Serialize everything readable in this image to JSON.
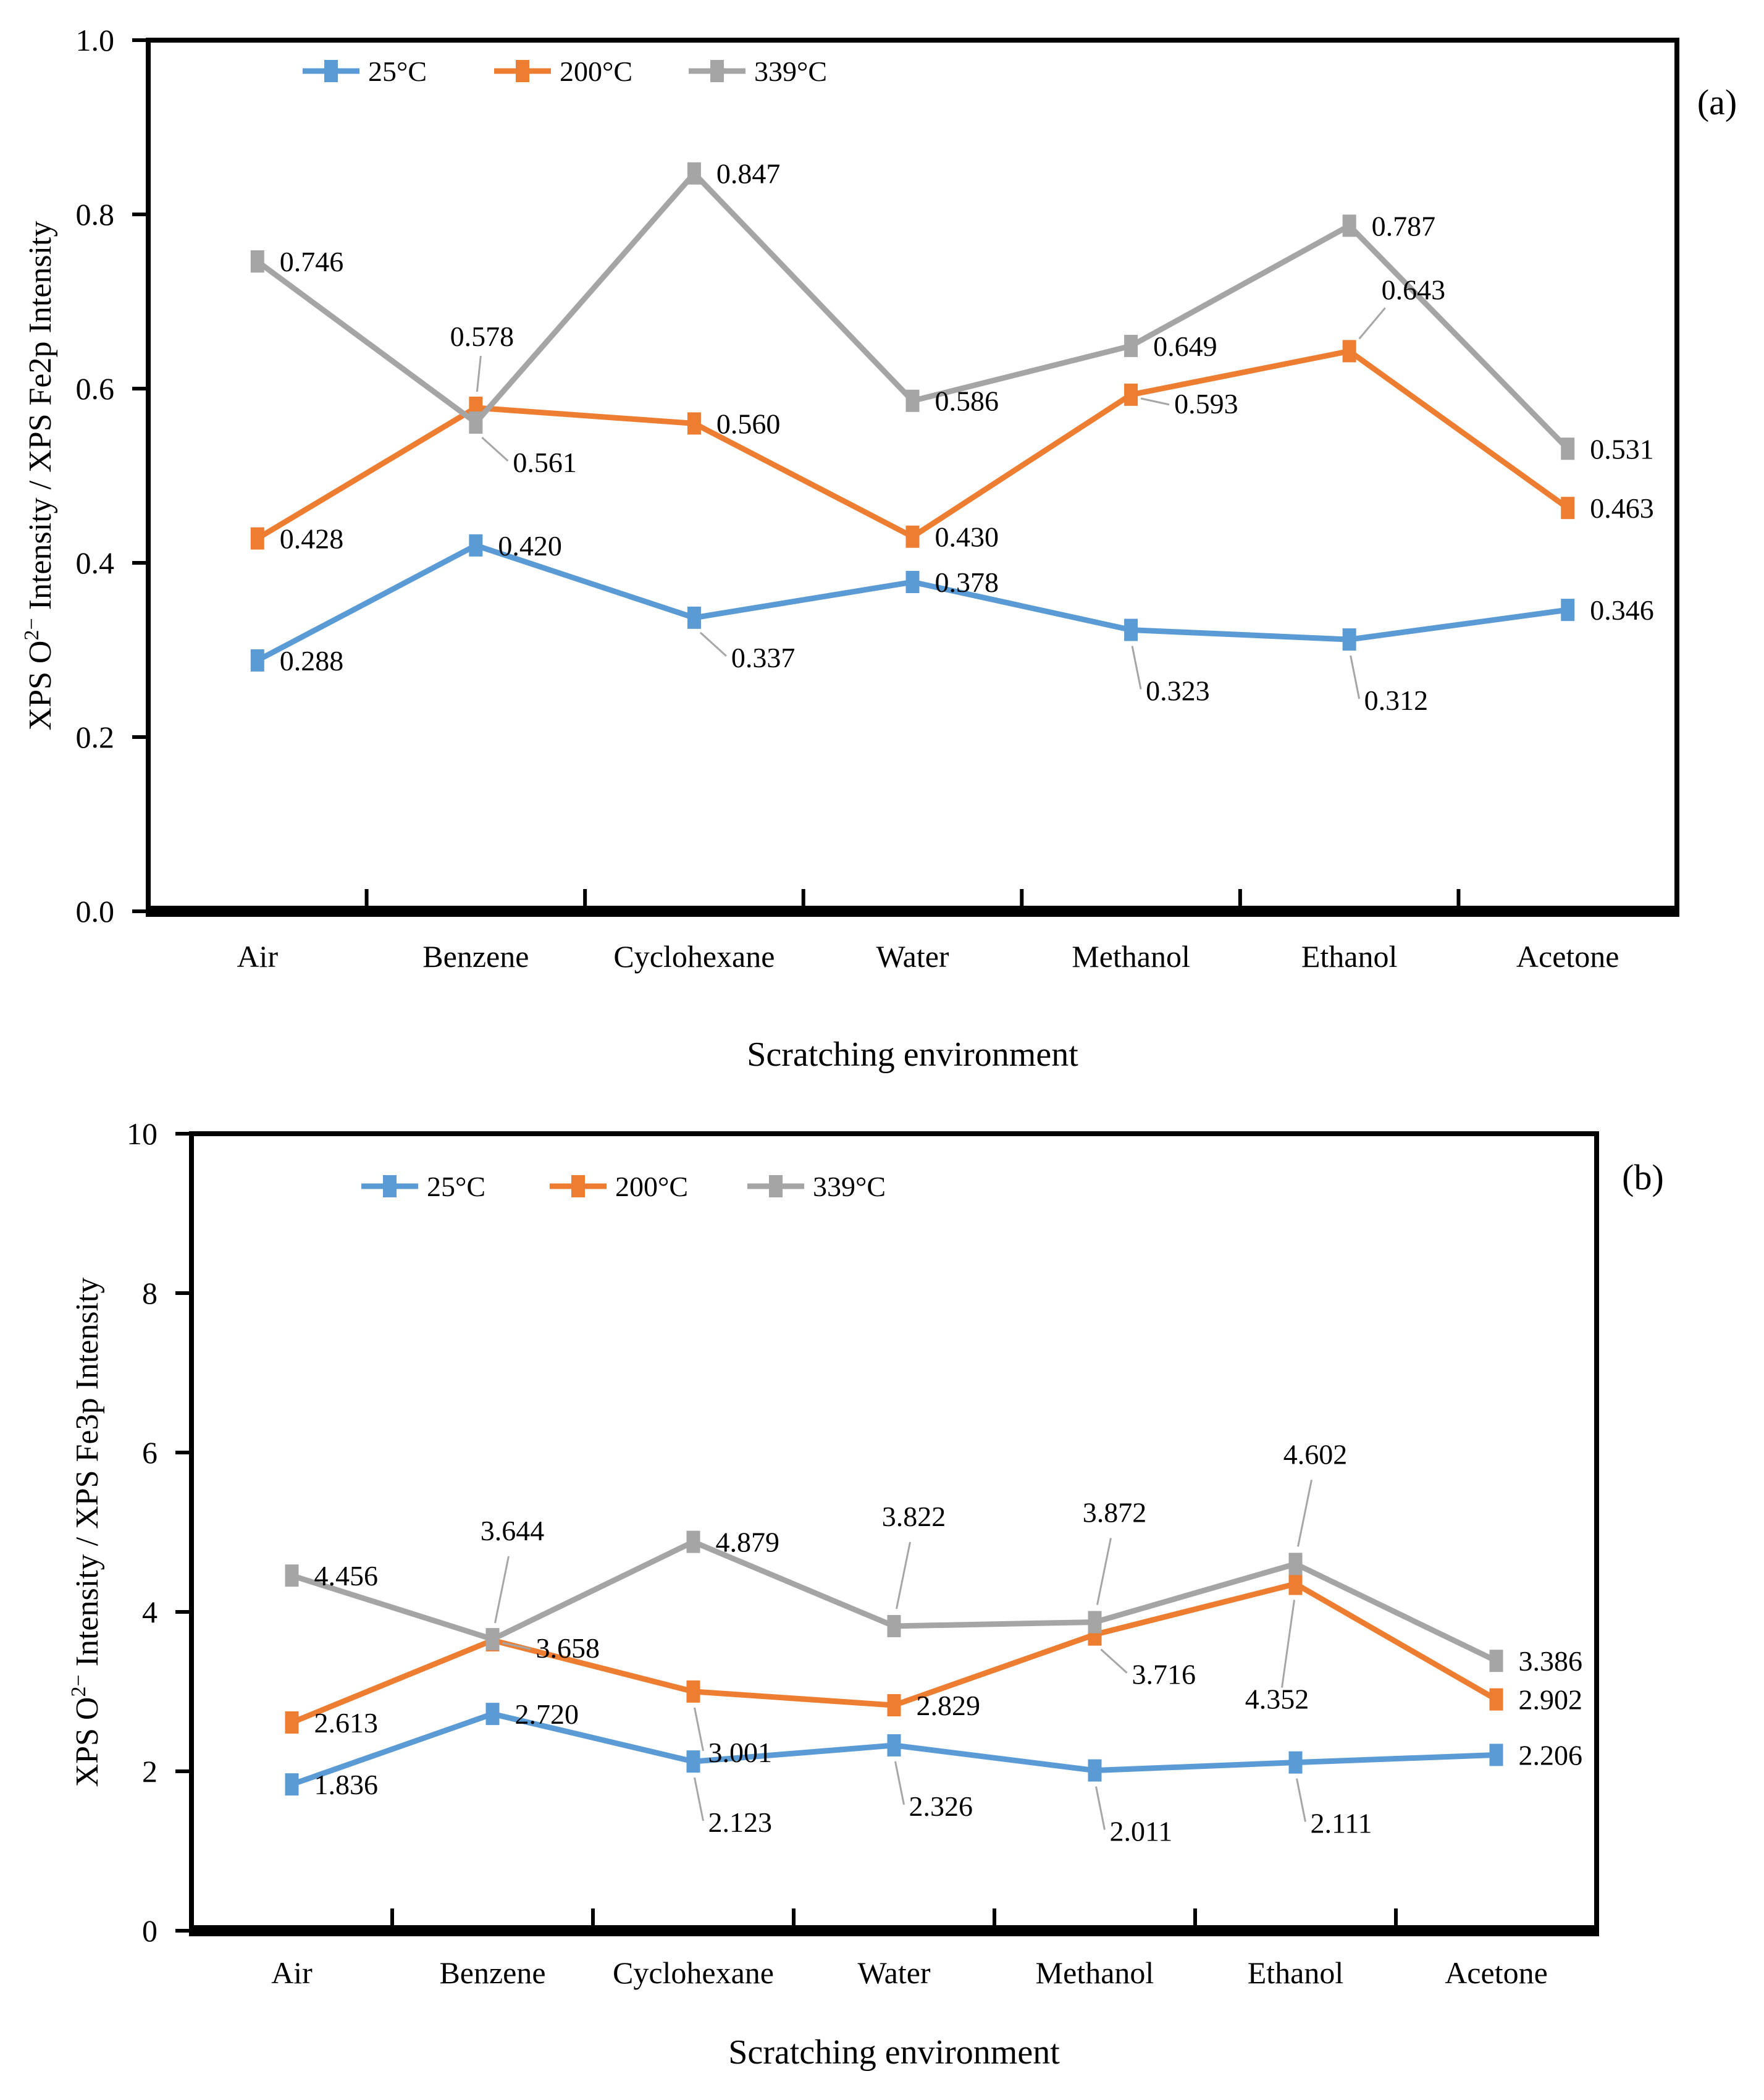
{
  "figure": {
    "background": "#ffffff",
    "x_axis_title": "Scratching environment",
    "categories": [
      "Air",
      "Benzene",
      "Cyclohexane",
      "Water",
      "Methanol",
      "Ethanol",
      "Acetone"
    ],
    "series_colors": {
      "25C": "#5B9BD5",
      "200C": "#ED7D31",
      "339C": "#A5A5A5"
    },
    "leader_line_color": "#A6A6A6"
  },
  "chart_data": [
    {
      "type": "line",
      "id": "a",
      "panel_label": "(a)",
      "title": "",
      "xlabel": "Scratching environment",
      "ylabel_pre": "XPS O",
      "ylabel_sup": "2−",
      "ylabel_post": " Intensity / XPS Fe2p Intensity",
      "categories": [
        "Air",
        "Benzene",
        "Cyclohexane",
        "Water",
        "Methanol",
        "Ethanol",
        "Acetone"
      ],
      "ylim": [
        0,
        1.0
      ],
      "ytick_step": 0.2,
      "ytick_labels": [
        "0.0",
        "0.2",
        "0.4",
        "0.6",
        "0.8",
        "1.0"
      ],
      "grid": false,
      "legend_position": "top-left",
      "series": [
        {
          "name": "25°C",
          "color": "#5B9BD5",
          "values": [
            0.288,
            0.42,
            0.337,
            0.378,
            0.323,
            0.312,
            0.346
          ],
          "label_pos": [
            "r",
            "r",
            "brl",
            "r",
            "bl",
            "bl",
            "r"
          ]
        },
        {
          "name": "200°C",
          "color": "#ED7D31",
          "values": [
            0.428,
            0.578,
            0.56,
            0.43,
            0.593,
            0.643,
            0.463
          ],
          "label_pos": [
            "r",
            "al",
            "r",
            "r",
            "rl",
            "arl",
            "r"
          ]
        },
        {
          "name": "339°C",
          "color": "#A5A5A5",
          "values": [
            0.746,
            0.561,
            0.847,
            0.586,
            0.649,
            0.787,
            0.531
          ],
          "label_pos": [
            "r",
            "brl",
            "r",
            "r",
            "r",
            "r",
            "r"
          ]
        }
      ]
    },
    {
      "type": "line",
      "id": "b",
      "panel_label": "(b)",
      "title": "",
      "xlabel": "Scratching environment",
      "ylabel_pre": "XPS O",
      "ylabel_sup": "2−",
      "ylabel_post": " Intensity / XPS Fe3p Intensity",
      "categories": [
        "Air",
        "Benzene",
        "Cyclohexane",
        "Water",
        "Methanol",
        "Ethanol",
        "Acetone"
      ],
      "ylim": [
        0,
        10
      ],
      "ytick_step": 2,
      "ytick_labels": [
        "0",
        "2",
        "4",
        "6",
        "8",
        "10"
      ],
      "grid": false,
      "legend_position": "top-left",
      "series": [
        {
          "name": "25°C",
          "color": "#5B9BD5",
          "values": [
            1.836,
            2.72,
            2.123,
            2.326,
            2.011,
            2.111,
            2.206
          ],
          "label_pos": [
            "r",
            "r",
            "bl",
            "bl",
            "bl",
            "bl",
            "r"
          ]
        },
        {
          "name": "200°C",
          "color": "#ED7D31",
          "values": [
            2.613,
            3.644,
            3.001,
            2.829,
            3.716,
            4.352,
            2.902
          ],
          "label_pos": [
            "r",
            "al2",
            "bl",
            "r",
            "brl",
            "bl2",
            "r"
          ]
        },
        {
          "name": "339°C",
          "color": "#A5A5A5",
          "values": [
            4.456,
            3.658,
            4.879,
            3.822,
            3.872,
            4.602,
            3.386
          ],
          "label_pos": [
            "r",
            "rl",
            "r",
            "al2",
            "al2",
            "al2",
            "r"
          ]
        }
      ]
    }
  ]
}
